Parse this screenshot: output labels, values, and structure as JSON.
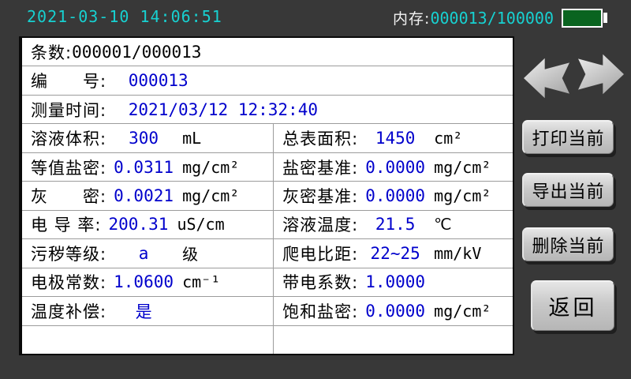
{
  "status_bar": {
    "datetime": "2021-03-10 14:06:51",
    "memory_label": "内存:",
    "memory_value": "000013/100000",
    "battery_icon": "battery-full-icon",
    "battery_color": "#0a6420"
  },
  "colors": {
    "background": "#383838",
    "accent_cyan": "#17d1d1",
    "value_blue": "#0000cc",
    "table_border": "#9c9c9c",
    "button_gray": "#c9c9c9"
  },
  "table": {
    "full_rows": [
      {
        "label": "条数:",
        "value": "000001/000013"
      },
      {
        "label": "编　　号: ",
        "value": "000013"
      },
      {
        "label": "测量时间: ",
        "value": "2021/03/12 12:32:40"
      }
    ],
    "pair_rows": [
      {
        "left": {
          "label": "溶液体积:",
          "value": "300",
          "unit": "mL"
        },
        "right": {
          "label": "总表面积:",
          "value": "1450",
          "unit": "cm²"
        }
      },
      {
        "left": {
          "label": "等值盐密:",
          "value": "0.0311",
          "unit": "mg/cm²"
        },
        "right": {
          "label": "盐密基准:",
          "value": "0.0000",
          "unit": "mg/cm²"
        }
      },
      {
        "left": {
          "label": "灰　　密:",
          "value": "0.0021",
          "unit": "mg/cm²"
        },
        "right": {
          "label": "灰密基准:",
          "value": "0.0000",
          "unit": "mg/cm²"
        }
      },
      {
        "left": {
          "label": "电 导 率:",
          "value": "200.31",
          "unit": "uS/cm"
        },
        "right": {
          "label": "溶液温度:",
          "value": "21.5",
          "unit": "℃"
        }
      },
      {
        "left": {
          "label": "污秽等级:",
          "value": "a",
          "unit": "级"
        },
        "right": {
          "label": "爬电比距:",
          "value": "22~25",
          "unit": "mm/kV"
        }
      },
      {
        "left": {
          "label": "电极常数:",
          "value": "1.0600",
          "unit": "cm⁻¹"
        },
        "right": {
          "label": "带电系数:",
          "value": "1.0000",
          "unit": ""
        }
      },
      {
        "left": {
          "label": "温度补偿:",
          "value": "是",
          "unit": ""
        },
        "right": {
          "label": "饱和盐密:",
          "value": "0.0000",
          "unit": "mg/cm²"
        }
      }
    ]
  },
  "side_panel": {
    "prev_icon": "arrow-left-icon",
    "next_icon": "arrow-right-icon",
    "print_label": "打印当前",
    "export_label": "导出当前",
    "delete_label": "删除当前",
    "back_label": "返回"
  }
}
